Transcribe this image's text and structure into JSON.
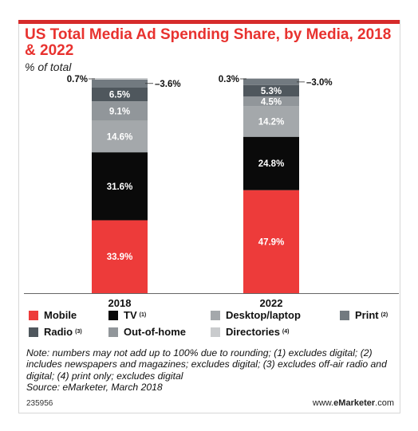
{
  "header": {
    "title": "US Total Media Ad Spending Share, by Media, 2018 & 2022",
    "subtitle": "% of total"
  },
  "chart_data": {
    "type": "bar",
    "stacked": true,
    "categories": [
      "2018",
      "2022"
    ],
    "ylim": [
      0,
      100
    ],
    "grid": false,
    "legend_position": "bottom",
    "series": [
      {
        "name": "Mobile",
        "sup": "",
        "color": "#ed3b3a",
        "values": [
          33.9,
          47.9
        ],
        "labels": [
          "33.9%",
          "47.9%"
        ],
        "label_color": "#ffffff"
      },
      {
        "name": "TV",
        "sup": "(1)",
        "color": "#0a0a0a",
        "values": [
          31.6,
          24.8
        ],
        "labels": [
          "31.6%",
          "24.8%"
        ],
        "label_color": "#ffffff"
      },
      {
        "name": "Desktop/laptop",
        "sup": "",
        "color": "#a4a8ab",
        "values": [
          14.6,
          14.2
        ],
        "labels": [
          "14.6%",
          "14.2%"
        ],
        "label_color": "#ffffff"
      },
      {
        "name": "Out-of-home",
        "sup": "",
        "color": "#91969a",
        "values": [
          9.1,
          4.5
        ],
        "labels": [
          "9.1%",
          "4.5%"
        ],
        "label_color": "#ffffff"
      },
      {
        "name": "Radio",
        "sup": "(3)",
        "color": "#4f575d",
        "values": [
          6.5,
          5.3
        ],
        "labels": [
          "6.5%",
          "5.3%"
        ],
        "label_color": "#ffffff"
      },
      {
        "name": "Print",
        "sup": "(2)",
        "color": "#727a80",
        "values": [
          3.6,
          3.0
        ],
        "labels": [
          "3.6%",
          "3.0%"
        ],
        "label_color": "#111111",
        "callout": "right"
      },
      {
        "name": "Directories",
        "sup": "(4)",
        "color": "#c9cbcd",
        "values": [
          0.7,
          0.3
        ],
        "labels": [
          "0.7%",
          "0.3%"
        ],
        "label_color": "#111111",
        "callout": "left"
      }
    ]
  },
  "legend": {
    "items": [
      {
        "name": "Mobile",
        "sup": "",
        "color": "#ed3b3a"
      },
      {
        "name": "TV",
        "sup": "(1)",
        "color": "#0a0a0a"
      },
      {
        "name": "Desktop/laptop",
        "sup": "",
        "color": "#a4a8ab"
      },
      {
        "name": "Print",
        "sup": "(2)",
        "color": "#727a80"
      },
      {
        "name": "Radio",
        "sup": "(3)",
        "color": "#4f575d"
      },
      {
        "name": "Out-of-home",
        "sup": "",
        "color": "#91969a"
      },
      {
        "name": "Directories",
        "sup": "(4)",
        "color": "#c9cbcd"
      }
    ]
  },
  "notes": {
    "text": "Note: numbers may not add up to 100% due to rounding; (1) excludes digital; (2) includes newspapers and magazines; excludes digital; (3) excludes off-air radio and digital; (4) print only; excludes digital",
    "source": "Source: eMarketer, March 2018"
  },
  "footer": {
    "id": "235956",
    "brand_prefix": "www.",
    "brand_name": "eMarketer",
    "brand_suffix": ".com"
  },
  "colors": {
    "accent": "#e8322f",
    "frame": "#d7d7d7"
  }
}
